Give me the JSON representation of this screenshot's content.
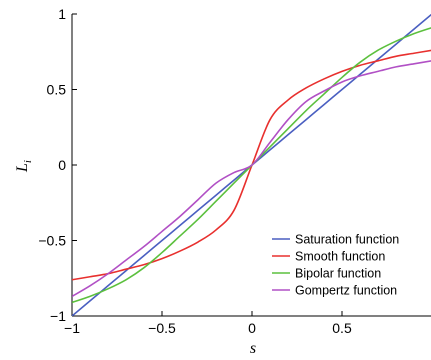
{
  "chart_data": {
    "type": "line",
    "xlabel": "s",
    "ylabel_base": "L",
    "ylabel_sub": "i",
    "xlim": [
      -1,
      1
    ],
    "ylim": [
      -1,
      1
    ],
    "xticks": [
      -1,
      -0.5,
      0,
      0.5
    ],
    "xtick_labels": [
      "−1",
      "−0.5",
      "0",
      "0.5"
    ],
    "yticks": [
      -1,
      -0.5,
      0,
      0.5,
      1
    ],
    "ytick_labels": [
      "−1",
      "−0.5",
      "0",
      "0.5",
      "1"
    ],
    "grid": false,
    "legend_position": "bottom-right",
    "x": [
      -1,
      -0.9,
      -0.8,
      -0.7,
      -0.6,
      -0.5,
      -0.4,
      -0.3,
      -0.2,
      -0.1,
      0,
      0.1,
      0.2,
      0.3,
      0.4,
      0.5,
      0.6,
      0.7,
      0.8,
      0.9,
      1
    ],
    "series": [
      {
        "name": "Saturation function",
        "color": "#4a5fc1",
        "values": [
          -1,
          -0.9,
          -0.8,
          -0.7,
          -0.6,
          -0.5,
          -0.4,
          -0.3,
          -0.2,
          -0.1,
          0,
          0.1,
          0.2,
          0.3,
          0.4,
          0.5,
          0.6,
          0.7,
          0.8,
          0.9,
          1
        ]
      },
      {
        "name": "Smooth function",
        "color": "#e8302e",
        "values": [
          -0.76,
          -0.74,
          -0.72,
          -0.69,
          -0.66,
          -0.62,
          -0.57,
          -0.51,
          -0.43,
          -0.3,
          0,
          0.3,
          0.43,
          0.51,
          0.57,
          0.62,
          0.66,
          0.69,
          0.72,
          0.74,
          0.76
        ]
      },
      {
        "name": "Bipolar function",
        "color": "#5cc03e",
        "values": [
          -0.91,
          -0.87,
          -0.82,
          -0.76,
          -0.68,
          -0.58,
          -0.47,
          -0.36,
          -0.24,
          -0.12,
          0,
          0.12,
          0.24,
          0.36,
          0.47,
          0.58,
          0.68,
          0.76,
          0.82,
          0.87,
          0.91
        ]
      },
      {
        "name": "Gompertz function",
        "color": "#b150c5",
        "values": [
          -0.87,
          -0.8,
          -0.72,
          -0.63,
          -0.54,
          -0.44,
          -0.34,
          -0.23,
          -0.12,
          -0.05,
          0,
          0.15,
          0.3,
          0.42,
          0.49,
          0.55,
          0.59,
          0.62,
          0.65,
          0.67,
          0.69
        ]
      }
    ]
  }
}
